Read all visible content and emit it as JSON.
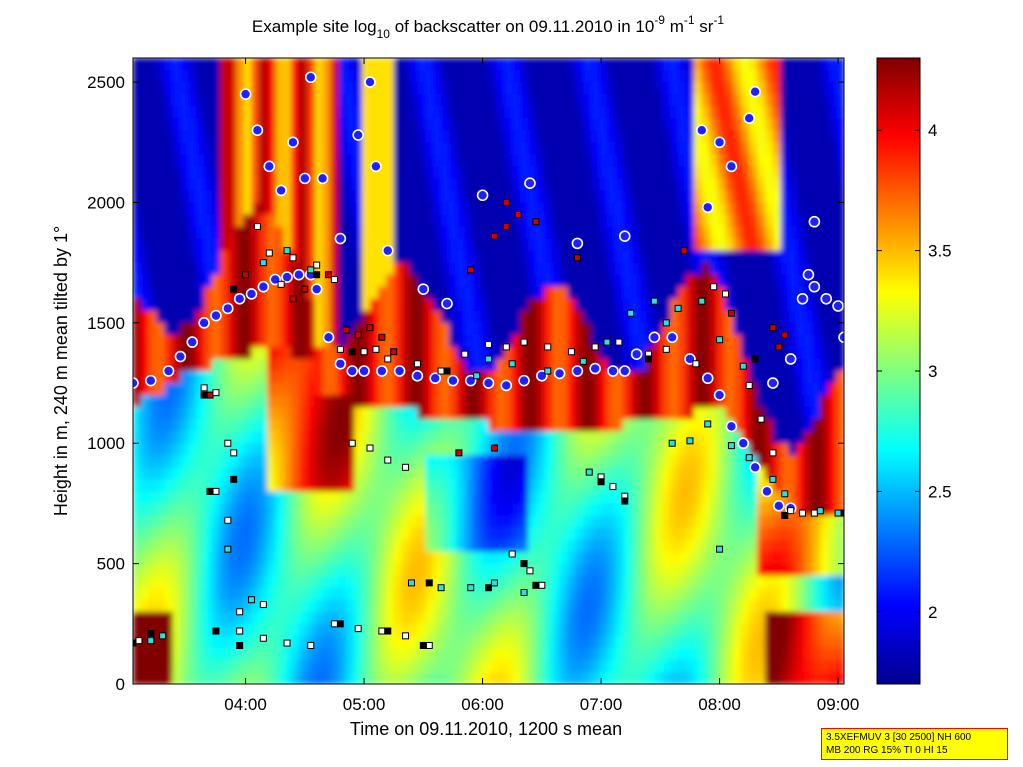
{
  "chart_data": {
    "type": "heatmap",
    "title": {
      "prefix": "Example site log",
      "sub": "10",
      "middle": " of backscatter on 09.11.2010 in 10",
      "sup1": "-9",
      "unit_m": " m",
      "sup2": "-1",
      "unit_sr": " sr",
      "sup3": "-1"
    },
    "xlabel": "Time on 09.11.2010, 1200 s mean",
    "ylabel": "Height in m, 240 m mean tilted by 1°",
    "x_ticks": [
      "04:00",
      "05:00",
      "06:00",
      "07:00",
      "08:00",
      "09:00"
    ],
    "y_ticks": [
      "0",
      "500",
      "1000",
      "1500",
      "2000",
      "2500"
    ],
    "xlim_hours": [
      3.05,
      9.05
    ],
    "ylim": [
      0,
      2600
    ],
    "colorbar": {
      "ticks": [
        "2",
        "2.5",
        "3",
        "3.5",
        "4"
      ],
      "range": [
        1.7,
        4.3
      ]
    },
    "colormap": [
      "#00008f",
      "#0000ff",
      "#0080ff",
      "#00ffff",
      "#80ff80",
      "#ffff00",
      "#ff8000",
      "#ff0000",
      "#800000"
    ],
    "series": [
      {
        "marker": "red-white-circle-blue-fill",
        "points": [
          [
            3.05,
            1250
          ],
          [
            3.2,
            1260
          ],
          [
            3.35,
            1300
          ],
          [
            3.45,
            1360
          ],
          [
            3.55,
            1420
          ],
          [
            3.65,
            1500
          ],
          [
            3.75,
            1530
          ],
          [
            3.85,
            1560
          ],
          [
            3.95,
            1600
          ],
          [
            4.05,
            1620
          ],
          [
            4.15,
            1650
          ],
          [
            4.25,
            1680
          ],
          [
            4.35,
            1690
          ],
          [
            4.45,
            1700
          ],
          [
            4.55,
            1700
          ],
          [
            4.6,
            1640
          ],
          [
            4.7,
            1440
          ],
          [
            4.8,
            1330
          ],
          [
            4.9,
            1300
          ],
          [
            5.0,
            1300
          ],
          [
            5.15,
            1300
          ],
          [
            5.3,
            1300
          ],
          [
            5.45,
            1280
          ],
          [
            5.6,
            1270
          ],
          [
            5.75,
            1260
          ],
          [
            5.9,
            1260
          ],
          [
            6.05,
            1250
          ],
          [
            6.2,
            1240
          ],
          [
            6.35,
            1260
          ],
          [
            6.5,
            1280
          ],
          [
            6.65,
            1290
          ],
          [
            6.8,
            1300
          ],
          [
            6.95,
            1310
          ],
          [
            7.1,
            1300
          ],
          [
            7.2,
            1300
          ],
          [
            7.3,
            1370
          ],
          [
            7.45,
            1440
          ],
          [
            7.6,
            1440
          ],
          [
            7.75,
            1350
          ],
          [
            7.9,
            1270
          ],
          [
            8.0,
            1200
          ],
          [
            8.1,
            1070
          ],
          [
            8.2,
            1000
          ],
          [
            8.3,
            900
          ],
          [
            8.4,
            800
          ],
          [
            8.5,
            740
          ],
          [
            8.6,
            730
          ],
          [
            8.7,
            1600
          ],
          [
            8.8,
            1650
          ],
          [
            8.9,
            1600
          ],
          [
            9.0,
            1570
          ],
          [
            9.05,
            1440
          ],
          [
            4.0,
            2450
          ],
          [
            4.1,
            2300
          ],
          [
            4.2,
            2150
          ],
          [
            4.3,
            2050
          ],
          [
            4.4,
            2250
          ],
          [
            4.5,
            2100
          ],
          [
            4.55,
            2520
          ],
          [
            4.65,
            2100
          ],
          [
            4.8,
            1850
          ],
          [
            4.95,
            2280
          ],
          [
            5.05,
            2500
          ],
          [
            5.1,
            2150
          ],
          [
            5.2,
            1800
          ],
          [
            5.5,
            1640
          ],
          [
            5.7,
            1580
          ],
          [
            6.0,
            2030
          ],
          [
            6.4,
            2080
          ],
          [
            6.8,
            1830
          ],
          [
            7.2,
            1860
          ],
          [
            7.85,
            2300
          ],
          [
            7.9,
            1980
          ],
          [
            8.0,
            2250
          ],
          [
            8.1,
            2150
          ],
          [
            8.25,
            2350
          ],
          [
            8.3,
            2460
          ],
          [
            8.45,
            1250
          ],
          [
            8.6,
            1350
          ],
          [
            8.75,
            1700
          ],
          [
            8.8,
            1920
          ]
        ]
      },
      {
        "marker": "red-square",
        "points": [
          [
            4.4,
            1600
          ],
          [
            4.5,
            1640
          ],
          [
            4.7,
            1700
          ],
          [
            4.85,
            1470
          ],
          [
            4.95,
            1450
          ],
          [
            5.05,
            1480
          ],
          [
            5.15,
            1440
          ],
          [
            5.25,
            1380
          ],
          [
            5.9,
            1720
          ],
          [
            6.1,
            1860
          ],
          [
            6.2,
            1900
          ],
          [
            6.3,
            1950
          ],
          [
            6.45,
            1920
          ],
          [
            6.2,
            2000
          ],
          [
            6.8,
            1770
          ],
          [
            7.7,
            1800
          ],
          [
            8.1,
            1540
          ],
          [
            8.5,
            1400
          ],
          [
            5.8,
            960
          ],
          [
            6.1,
            980
          ],
          [
            4.0,
            1700
          ],
          [
            3.7,
            1200
          ],
          [
            8.45,
            1480
          ],
          [
            8.55,
            1450
          ]
        ]
      },
      {
        "marker": "white-square",
        "points": [
          [
            3.65,
            1230
          ],
          [
            3.75,
            1210
          ],
          [
            3.85,
            1000
          ],
          [
            3.9,
            960
          ],
          [
            4.1,
            1900
          ],
          [
            4.2,
            1790
          ],
          [
            4.3,
            1660
          ],
          [
            4.4,
            1770
          ],
          [
            4.6,
            1740
          ],
          [
            4.75,
            1680
          ],
          [
            4.8,
            1390
          ],
          [
            5.0,
            1380
          ],
          [
            5.1,
            1390
          ],
          [
            5.2,
            1350
          ],
          [
            5.45,
            1330
          ],
          [
            5.65,
            1300
          ],
          [
            5.85,
            1370
          ],
          [
            6.05,
            1410
          ],
          [
            6.2,
            1400
          ],
          [
            6.35,
            1420
          ],
          [
            6.55,
            1400
          ],
          [
            6.75,
            1380
          ],
          [
            6.95,
            1400
          ],
          [
            7.15,
            1420
          ],
          [
            7.4,
            1370
          ],
          [
            7.55,
            1390
          ],
          [
            7.8,
            1330
          ],
          [
            7.95,
            1650
          ],
          [
            8.05,
            1620
          ],
          [
            8.25,
            1240
          ],
          [
            8.35,
            1100
          ],
          [
            8.45,
            960
          ],
          [
            4.9,
            1000
          ],
          [
            5.05,
            980
          ],
          [
            5.2,
            930
          ],
          [
            5.35,
            900
          ],
          [
            7.0,
            860
          ],
          [
            7.1,
            820
          ],
          [
            7.2,
            780
          ],
          [
            3.95,
            220
          ],
          [
            4.15,
            190
          ],
          [
            4.35,
            170
          ],
          [
            4.55,
            160
          ],
          [
            4.75,
            250
          ],
          [
            4.95,
            230
          ],
          [
            5.15,
            220
          ],
          [
            5.35,
            200
          ],
          [
            5.55,
            160
          ],
          [
            6.25,
            540
          ],
          [
            6.4,
            470
          ],
          [
            6.5,
            410
          ],
          [
            3.95,
            300
          ],
          [
            4.15,
            330
          ],
          [
            3.1,
            180
          ],
          [
            3.2,
            200
          ],
          [
            8.6,
            720
          ],
          [
            8.7,
            710
          ],
          [
            8.8,
            710
          ],
          [
            3.75,
            800
          ],
          [
            3.85,
            680
          ]
        ]
      },
      {
        "marker": "cyan-square",
        "points": [
          [
            4.15,
            1750
          ],
          [
            4.35,
            1800
          ],
          [
            4.55,
            1720
          ],
          [
            5.95,
            1280
          ],
          [
            6.05,
            1350
          ],
          [
            6.25,
            1330
          ],
          [
            6.55,
            1300
          ],
          [
            6.85,
            1340
          ],
          [
            7.05,
            1420
          ],
          [
            7.25,
            1540
          ],
          [
            7.45,
            1590
          ],
          [
            7.55,
            1500
          ],
          [
            7.65,
            1560
          ],
          [
            7.85,
            1590
          ],
          [
            8.0,
            1430
          ],
          [
            8.2,
            1320
          ],
          [
            7.6,
            1000
          ],
          [
            7.75,
            1010
          ],
          [
            7.9,
            1080
          ],
          [
            8.1,
            990
          ],
          [
            8.25,
            940
          ],
          [
            8.45,
            850
          ],
          [
            8.55,
            790
          ],
          [
            8.85,
            720
          ],
          [
            9.0,
            710
          ],
          [
            3.85,
            560
          ],
          [
            4.05,
            350
          ],
          [
            5.4,
            420
          ],
          [
            5.65,
            400
          ],
          [
            5.9,
            400
          ],
          [
            6.1,
            420
          ],
          [
            6.35,
            380
          ],
          [
            3.2,
            180
          ],
          [
            3.3,
            200
          ],
          [
            8.0,
            560
          ],
          [
            6.9,
            880
          ]
        ]
      },
      {
        "marker": "black-square-line",
        "points": [
          [
            3.05,
            170
          ],
          [
            3.2,
            210
          ],
          [
            3.75,
            220
          ],
          [
            3.95,
            160
          ],
          [
            4.8,
            250
          ],
          [
            5.2,
            220
          ],
          [
            5.5,
            160
          ],
          [
            5.55,
            420
          ],
          [
            6.05,
            400
          ],
          [
            6.35,
            500
          ],
          [
            6.45,
            410
          ],
          [
            7.0,
            840
          ],
          [
            7.2,
            760
          ],
          [
            8.55,
            700
          ],
          [
            9.05,
            710
          ],
          [
            3.65,
            1200
          ],
          [
            4.9,
            1380
          ],
          [
            5.7,
            1300
          ],
          [
            7.4,
            1350
          ],
          [
            8.3,
            1350
          ],
          [
            3.9,
            1640
          ],
          [
            4.6,
            1700
          ],
          [
            3.7,
            800
          ],
          [
            3.9,
            850
          ]
        ]
      }
    ]
  },
  "info_box": {
    "line1": "3.5XEFMUV 3 [30 2500] NH 600",
    "line2": "MB 200 RG 15% TI 0 HI 15"
  }
}
